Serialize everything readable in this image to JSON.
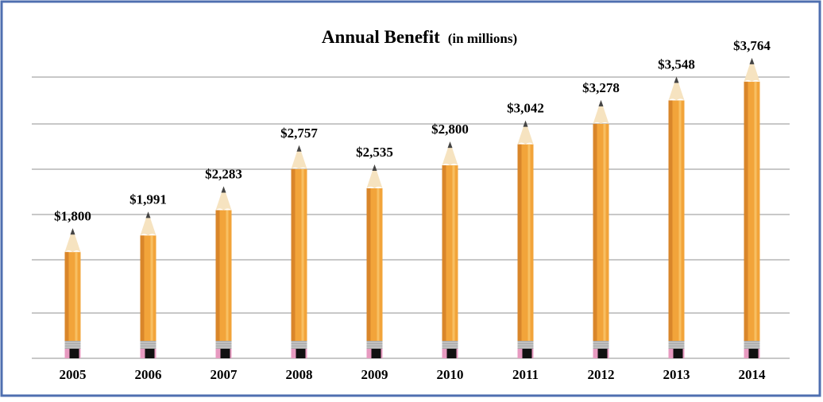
{
  "chart_data": {
    "type": "pencil-bar",
    "title": "Annual Benefit",
    "subtitle": "(in millions)",
    "categories": [
      "2005",
      "2006",
      "2007",
      "2008",
      "2009",
      "2010",
      "2011",
      "2012",
      "2013",
      "2014"
    ],
    "values": [
      1800,
      1991,
      2283,
      2757,
      2535,
      2800,
      3042,
      3278,
      3548,
      3764
    ],
    "value_labels": [
      "$1,800",
      "$1,991",
      "$2,283",
      "$2,757",
      "$2,535",
      "$2,800",
      "$3,042",
      "$3,278",
      "$3,548",
      "$3,764"
    ],
    "color": "#f2a43a",
    "ylim": [
      300,
      3900
    ],
    "grid": true
  }
}
